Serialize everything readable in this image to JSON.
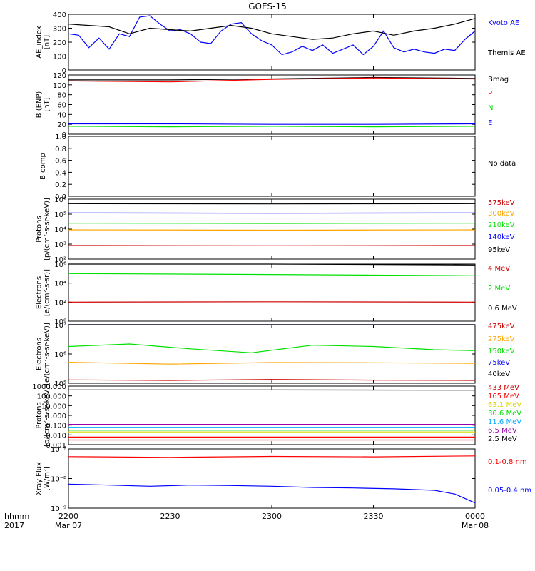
{
  "title": "GOES-15",
  "time_axis": {
    "ticks": [
      "2200",
      "2230",
      "2300",
      "2330",
      "0000"
    ],
    "dates": [
      "Mar 07",
      "",
      "",
      "",
      "Mar 08"
    ],
    "row_label": "hhmm",
    "year_label": "2017"
  },
  "colors": {
    "black": "#000000",
    "blue": "#0000ff",
    "darkred": "#cc0000",
    "red": "#ff0000",
    "orange": "#ffa500",
    "green": "#00e000",
    "yellow": "#d8d800",
    "cyan": "#00aaff",
    "purple": "#9900aa"
  },
  "chart_data": [
    {
      "type": "line",
      "id": "ae",
      "ylabel": [
        "AE_index",
        "[nT]"
      ],
      "ylim": [
        0,
        400
      ],
      "yticks": [
        "0",
        "100",
        "200",
        "300",
        "400"
      ],
      "x_range_hours": [
        0,
        2
      ],
      "series": [
        {
          "name": "Kyoto AE",
          "color": "blue",
          "x": [
            0,
            0.05,
            0.1,
            0.15,
            0.2,
            0.25,
            0.3,
            0.35,
            0.4,
            0.45,
            0.5,
            0.55,
            0.6,
            0.65,
            0.7,
            0.75,
            0.8,
            0.85,
            0.9,
            0.95,
            1.0,
            1.05,
            1.1,
            1.15,
            1.2,
            1.25,
            1.3,
            1.35,
            1.4,
            1.45,
            1.5,
            1.55,
            1.6,
            1.65,
            1.7,
            1.75,
            1.8,
            1.85,
            1.9,
            1.95,
            2.0
          ],
          "y": [
            260,
            250,
            160,
            230,
            150,
            260,
            240,
            380,
            390,
            330,
            280,
            290,
            260,
            200,
            190,
            280,
            330,
            340,
            260,
            210,
            180,
            110,
            130,
            170,
            140,
            180,
            120,
            150,
            180,
            110,
            170,
            280,
            160,
            130,
            150,
            130,
            120,
            150,
            140,
            220,
            280
          ]
        },
        {
          "name": "Themis AE",
          "color": "black",
          "x": [
            0,
            0.1,
            0.2,
            0.3,
            0.4,
            0.5,
            0.6,
            0.7,
            0.8,
            0.9,
            1.0,
            1.1,
            1.2,
            1.3,
            1.4,
            1.5,
            1.6,
            1.7,
            1.8,
            1.9,
            2.0
          ],
          "y": [
            330,
            320,
            310,
            260,
            300,
            290,
            280,
            300,
            320,
            300,
            260,
            240,
            220,
            230,
            260,
            280,
            250,
            280,
            300,
            330,
            370
          ]
        }
      ]
    },
    {
      "type": "line",
      "id": "bfield",
      "ylabel": [
        "B (ENP)",
        "[nT]"
      ],
      "ylim": [
        0,
        120
      ],
      "yticks": [
        "0",
        "20",
        "40",
        "60",
        "80",
        "100",
        "120"
      ],
      "series": [
        {
          "name": "Bmag",
          "color": "black",
          "x": [
            0,
            0.5,
            1.0,
            1.5,
            2.0
          ],
          "y": [
            110,
            110,
            112,
            115,
            113
          ]
        },
        {
          "name": "P",
          "color": "red",
          "x": [
            0,
            0.5,
            1.0,
            1.5,
            2.0
          ],
          "y": [
            108,
            106,
            111,
            114,
            112
          ]
        },
        {
          "name": "N",
          "color": "green",
          "x": [
            0,
            0.5,
            1.0,
            1.5,
            2.0
          ],
          "y": [
            16,
            15,
            16,
            15,
            16
          ]
        },
        {
          "name": "E",
          "color": "blue",
          "x": [
            0,
            0.5,
            1.0,
            1.5,
            2.0
          ],
          "y": [
            21,
            21,
            20,
            20,
            21
          ]
        }
      ]
    },
    {
      "type": "line",
      "id": "bcomp",
      "ylabel": [
        "B comp"
      ],
      "ylim": [
        0,
        1
      ],
      "yticks": [
        "0.0",
        "0.2",
        "0.4",
        "0.6",
        "0.8",
        "1.0"
      ],
      "note": "No data",
      "series": []
    },
    {
      "type": "line",
      "id": "protons_low",
      "ylabel": [
        "Protons",
        "[p/(cm²-s-sr-keV)]"
      ],
      "yscale": "log",
      "ylim": [
        100,
        1000000
      ],
      "yticks": [
        "10²",
        "10³",
        "10⁴",
        "10⁵",
        "10⁶"
      ],
      "series": [
        {
          "name": "575keV",
          "color": "darkred",
          "x": [
            0,
            1,
            2
          ],
          "y": [
            800,
            780,
            800
          ]
        },
        {
          "name": "300keV",
          "color": "orange",
          "x": [
            0,
            1,
            2
          ],
          "y": [
            9000,
            8500,
            9000
          ]
        },
        {
          "name": "210keV",
          "color": "green",
          "x": [
            0,
            1,
            2
          ],
          "y": [
            25000,
            24000,
            25000
          ]
        },
        {
          "name": "140keV",
          "color": "blue",
          "x": [
            0,
            1,
            2
          ],
          "y": [
            120000,
            115000,
            120000
          ]
        },
        {
          "name": "95keV",
          "color": "black",
          "x": [
            0,
            1,
            2
          ],
          "y": [
            500000,
            480000,
            500000
          ]
        }
      ]
    },
    {
      "type": "line",
      "id": "electrons_high",
      "ylabel": [
        "Electrons",
        "[e/(cm²-s-sr)]"
      ],
      "yscale": "log",
      "ylim": [
        1,
        1000000
      ],
      "yticks": [
        "10⁰",
        "10²",
        "10⁴",
        "10⁶"
      ],
      "series": [
        {
          "name": "4 MeV",
          "color": "darkred",
          "x": [
            0,
            1,
            2
          ],
          "y": [
            100,
            110,
            100
          ]
        },
        {
          "name": "2 MeV",
          "color": "green",
          "x": [
            0,
            1,
            2
          ],
          "y": [
            100000,
            80000,
            60000
          ]
        },
        {
          "name": "0.6 MeV",
          "color": "black",
          "x": [
            0,
            1,
            2
          ],
          "y": [
            1000000,
            1000000,
            800000
          ]
        }
      ]
    },
    {
      "type": "line",
      "id": "electrons_low",
      "ylabel": [
        "Electrons",
        "[e/(cm²-s-sr-keV)]"
      ],
      "yscale": "log",
      "ylim": [
        100000,
        10000000
      ],
      "yticks": [
        "10⁵",
        "10⁶",
        "10⁷"
      ],
      "series": [
        {
          "name": "475keV",
          "color": "darkred",
          "x": [
            0,
            0.5,
            1.0,
            1.5,
            2.0
          ],
          "y": [
            130000,
            125000,
            135000,
            128000,
            125000
          ]
        },
        {
          "name": "275keV",
          "color": "orange",
          "x": [
            0,
            0.5,
            1.0,
            1.5,
            2.0
          ],
          "y": [
            520000,
            450000,
            510000,
            500000,
            480000
          ]
        },
        {
          "name": "150keV",
          "color": "green",
          "x": [
            0,
            0.3,
            0.6,
            0.9,
            1.2,
            1.5,
            1.8,
            2.0
          ],
          "y": [
            1800000,
            2200000,
            1500000,
            1100000,
            2000000,
            1800000,
            1400000,
            1300000
          ]
        },
        {
          "name": "75keV",
          "color": "blue",
          "x": [
            0,
            2
          ],
          "y": [
            10000000,
            10000000
          ]
        },
        {
          "name": "40keV",
          "color": "black",
          "x": [
            0,
            2
          ],
          "y": [
            10000000,
            10000000
          ]
        }
      ]
    },
    {
      "type": "line",
      "id": "protons_high",
      "ylabel": [
        "Protons",
        "[p/(cm²-s-sr-keV)]"
      ],
      "yscale": "log",
      "ylim": [
        0.001,
        1000
      ],
      "yticks": [
        "0.001",
        "0.010",
        "0.100",
        "1.000",
        "10.000",
        "100.000",
        "1000.000"
      ],
      "series": [
        {
          "name": "433 MeV",
          "color": "darkred",
          "x": [
            0,
            1,
            2
          ],
          "y": [
            0.003,
            0.003,
            0.003
          ]
        },
        {
          "name": "165 MeV",
          "color": "red",
          "x": [
            0,
            1,
            2
          ],
          "y": [
            0.006,
            0.006,
            0.006
          ]
        },
        {
          "name": "63.1 MeV",
          "color": "yellow",
          "x": [
            0,
            1,
            2
          ],
          "y": [
            0.02,
            0.02,
            0.02
          ]
        },
        {
          "name": "30.6 MeV",
          "color": "green",
          "x": [
            0,
            1,
            2
          ],
          "y": [
            0.03,
            0.03,
            0.03
          ]
        },
        {
          "name": "11.6 MeV",
          "color": "cyan",
          "x": [
            0,
            1,
            2
          ],
          "y": [
            0.06,
            0.06,
            0.06
          ]
        },
        {
          "name": "6.5 MeV",
          "color": "purple",
          "x": [
            0,
            1,
            2
          ],
          "y": [
            0.12,
            0.12,
            0.12
          ]
        },
        {
          "name": "2.5 MeV",
          "color": "black",
          "x": [
            0,
            1,
            2
          ],
          "y": [
            400,
            400,
            380
          ]
        }
      ]
    },
    {
      "type": "line",
      "id": "xray",
      "ylabel": [
        "Xray Flux",
        "[W/m²]"
      ],
      "yscale": "log",
      "ylim": [
        1e-09,
        1e-07
      ],
      "yticks": [
        "10⁻⁹",
        "10⁻⁸",
        "10⁻⁷"
      ],
      "series": [
        {
          "name": "0.1-0.8 nm",
          "color": "red",
          "x": [
            0,
            0.5,
            1.0,
            1.5,
            2.0
          ],
          "y": [
            5.5e-08,
            5.2e-08,
            5.6e-08,
            5.4e-08,
            5.8e-08
          ]
        },
        {
          "name": "0.05-0.4 nm",
          "color": "blue",
          "x": [
            0,
            0.2,
            0.4,
            0.6,
            0.8,
            1.0,
            1.2,
            1.4,
            1.6,
            1.8,
            1.9,
            2.0
          ],
          "y": [
            6.5e-09,
            6e-09,
            5.5e-09,
            6e-09,
            5.8e-09,
            5.5e-09,
            5e-09,
            4.8e-09,
            4.5e-09,
            4e-09,
            3e-09,
            1.5e-09
          ]
        }
      ]
    }
  ]
}
